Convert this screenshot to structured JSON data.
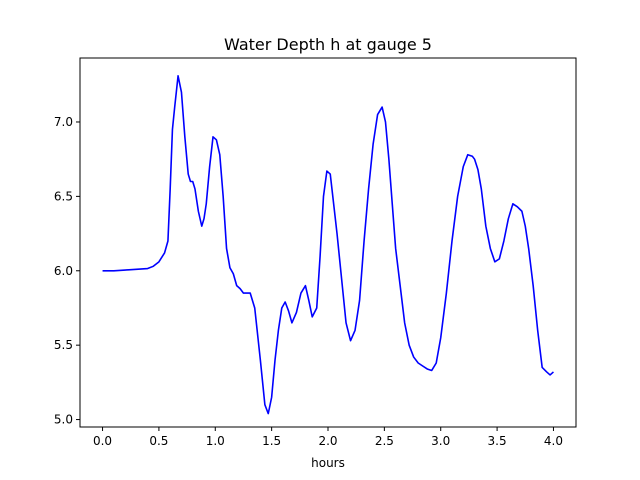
{
  "chart_data": {
    "type": "line",
    "title": "Water Depth h at gauge 5",
    "xlabel": "hours",
    "ylabel": "",
    "xlim": [
      -0.2,
      4.2
    ],
    "ylim": [
      4.95,
      7.43
    ],
    "xticks": [
      0.0,
      0.5,
      1.0,
      1.5,
      2.0,
      2.5,
      3.0,
      3.5,
      4.0
    ],
    "xtick_labels": [
      "0.0",
      "0.5",
      "1.0",
      "1.5",
      "2.0",
      "2.5",
      "3.0",
      "3.5",
      "4.0"
    ],
    "yticks": [
      5.0,
      5.5,
      6.0,
      6.5,
      7.0
    ],
    "ytick_labels": [
      "5.0",
      "5.5",
      "6.0",
      "6.5",
      "7.0"
    ],
    "grid": false,
    "series": [
      {
        "color": "#0000ff",
        "x": [
          0.0,
          0.1,
          0.2,
          0.3,
          0.4,
          0.45,
          0.5,
          0.55,
          0.58,
          0.6,
          0.62,
          0.64,
          0.67,
          0.7,
          0.73,
          0.76,
          0.78,
          0.8,
          0.82,
          0.85,
          0.88,
          0.9,
          0.92,
          0.95,
          0.98,
          1.01,
          1.04,
          1.07,
          1.1,
          1.13,
          1.16,
          1.19,
          1.22,
          1.25,
          1.28,
          1.31,
          1.35,
          1.4,
          1.44,
          1.47,
          1.5,
          1.53,
          1.56,
          1.59,
          1.62,
          1.65,
          1.68,
          1.72,
          1.76,
          1.8,
          1.83,
          1.86,
          1.9,
          1.93,
          1.96,
          1.99,
          2.02,
          2.05,
          2.08,
          2.12,
          2.16,
          2.2,
          2.24,
          2.28,
          2.32,
          2.36,
          2.4,
          2.44,
          2.48,
          2.51,
          2.54,
          2.57,
          2.6,
          2.64,
          2.68,
          2.72,
          2.76,
          2.8,
          2.84,
          2.88,
          2.92,
          2.96,
          3.0,
          3.05,
          3.1,
          3.15,
          3.2,
          3.24,
          3.28,
          3.3,
          3.33,
          3.36,
          3.4,
          3.44,
          3.48,
          3.52,
          3.56,
          3.6,
          3.64,
          3.68,
          3.72,
          3.75,
          3.78,
          3.82,
          3.86,
          3.9,
          3.94,
          3.97,
          4.0
        ],
        "y": [
          6.0,
          6.0,
          6.005,
          6.01,
          6.015,
          6.03,
          6.06,
          6.12,
          6.2,
          6.55,
          6.95,
          7.1,
          7.31,
          7.2,
          6.9,
          6.65,
          6.6,
          6.6,
          6.55,
          6.4,
          6.3,
          6.35,
          6.45,
          6.7,
          6.9,
          6.88,
          6.78,
          6.5,
          6.15,
          6.02,
          5.98,
          5.9,
          5.88,
          5.85,
          5.85,
          5.85,
          5.75,
          5.4,
          5.1,
          5.04,
          5.15,
          5.4,
          5.6,
          5.75,
          5.79,
          5.73,
          5.65,
          5.72,
          5.85,
          5.9,
          5.8,
          5.69,
          5.75,
          6.1,
          6.5,
          6.67,
          6.65,
          6.45,
          6.25,
          5.95,
          5.65,
          5.53,
          5.6,
          5.8,
          6.2,
          6.55,
          6.85,
          7.05,
          7.1,
          7.0,
          6.75,
          6.45,
          6.15,
          5.9,
          5.65,
          5.5,
          5.42,
          5.38,
          5.36,
          5.34,
          5.33,
          5.38,
          5.55,
          5.85,
          6.2,
          6.5,
          6.7,
          6.78,
          6.77,
          6.75,
          6.68,
          6.55,
          6.3,
          6.15,
          6.06,
          6.08,
          6.2,
          6.35,
          6.45,
          6.43,
          6.4,
          6.3,
          6.15,
          5.9,
          5.6,
          5.35,
          5.32,
          5.3,
          5.32
        ]
      }
    ]
  }
}
